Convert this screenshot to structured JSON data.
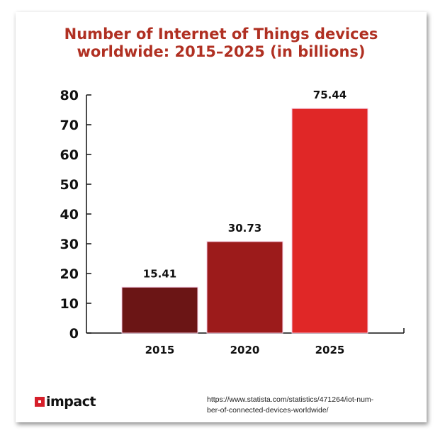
{
  "chart_data": {
    "type": "bar",
    "title": "Number of Internet of Things devices worldwide: 2015–2025 (in billions)",
    "categories": [
      "2015",
      "2020",
      "2025"
    ],
    "values": [
      15.41,
      30.73,
      75.44
    ],
    "data_labels": [
      "15.41",
      "30.73",
      "75.44"
    ],
    "ylim": [
      0,
      80
    ],
    "yticks": [
      0,
      10,
      20,
      30,
      40,
      50,
      60,
      70,
      80
    ],
    "grid": false,
    "legend": "none",
    "colors": [
      "#6b1515",
      "#9c1b1b",
      "#e02727"
    ]
  },
  "logo": {
    "text": "impact"
  },
  "source": "https://www.statista.com/statistics/471264/iot-number-of-connected-devices-worldwide/",
  "source_lines": [
    "https://www.statista.com/statistics/471264/iot-num-",
    "ber-of-connected-devices-worldwide/"
  ]
}
